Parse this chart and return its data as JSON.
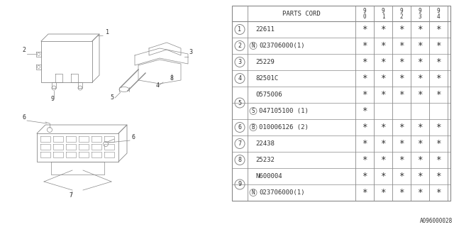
{
  "bg_color": "#ffffff",
  "rows": [
    {
      "num": "1",
      "num_show": true,
      "num_span_start": true,
      "prefix": "",
      "code": "22611",
      "stars": [
        true,
        true,
        true,
        true,
        true
      ]
    },
    {
      "num": "2",
      "num_show": true,
      "num_span_start": true,
      "prefix": "N",
      "code": "023706000(1)",
      "stars": [
        true,
        true,
        true,
        true,
        true
      ]
    },
    {
      "num": "3",
      "num_show": true,
      "num_span_start": true,
      "prefix": "",
      "code": "25229",
      "stars": [
        true,
        true,
        true,
        true,
        true
      ]
    },
    {
      "num": "4",
      "num_show": true,
      "num_span_start": true,
      "prefix": "",
      "code": "82501C",
      "stars": [
        true,
        true,
        true,
        true,
        true
      ]
    },
    {
      "num": "5",
      "num_show": true,
      "num_span_start": true,
      "prefix": "",
      "code": "0575006",
      "stars": [
        true,
        true,
        true,
        true,
        true
      ]
    },
    {
      "num": "5",
      "num_show": false,
      "num_span_start": false,
      "prefix": "S",
      "code": "047105100 (1)",
      "stars": [
        true,
        false,
        false,
        false,
        false
      ]
    },
    {
      "num": "6",
      "num_show": true,
      "num_span_start": true,
      "prefix": "B",
      "code": "010006126 (2)",
      "stars": [
        true,
        true,
        true,
        true,
        true
      ]
    },
    {
      "num": "7",
      "num_show": true,
      "num_span_start": true,
      "prefix": "",
      "code": "22438",
      "stars": [
        true,
        true,
        true,
        true,
        true
      ]
    },
    {
      "num": "8",
      "num_show": true,
      "num_span_start": true,
      "prefix": "",
      "code": "25232",
      "stars": [
        true,
        true,
        true,
        true,
        true
      ]
    },
    {
      "num": "9",
      "num_show": true,
      "num_span_start": true,
      "prefix": "",
      "code": "N600004",
      "stars": [
        true,
        true,
        true,
        true,
        true
      ]
    },
    {
      "num": "9",
      "num_show": false,
      "num_span_start": false,
      "prefix": "N",
      "code": "023706000(1)",
      "stars": [
        true,
        true,
        true,
        true,
        true
      ]
    }
  ],
  "footer_text": "A096000028",
  "line_color": "#888888",
  "text_color": "#333333",
  "years": [
    "9\n0",
    "9\n1",
    "9\n2",
    "9\n3",
    "9\n4"
  ]
}
